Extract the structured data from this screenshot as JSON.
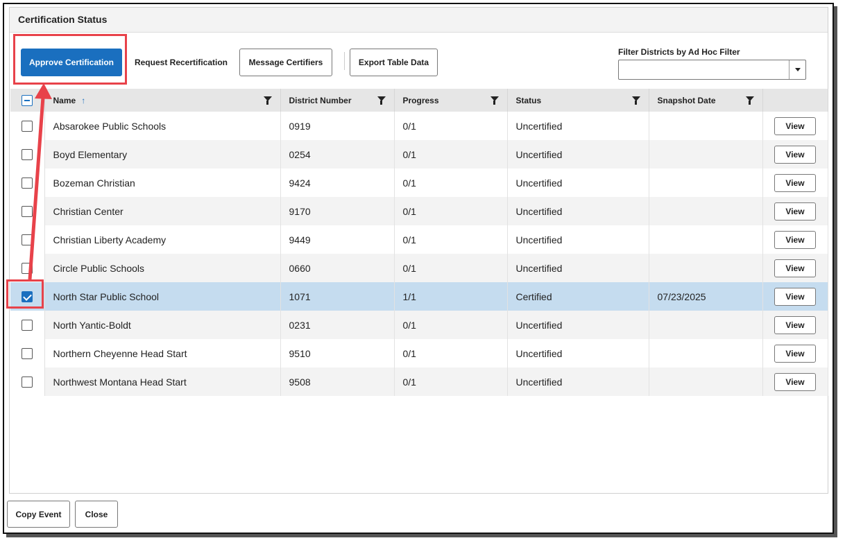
{
  "dialog": {
    "title": "Certification Status"
  },
  "toolbar": {
    "approve_label": "Approve Certification",
    "request_label": "Request Recertification",
    "message_label": "Message Certifiers",
    "export_label": "Export Table Data",
    "filter_label": "Filter Districts by Ad Hoc Filter",
    "filter_value": ""
  },
  "table": {
    "headers": {
      "name": "Name",
      "district_number": "District Number",
      "progress": "Progress",
      "status": "Status",
      "snapshot_date": "Snapshot Date"
    },
    "sort_column": "Name",
    "sort_direction": "ascending",
    "view_label": "View",
    "rows": [
      {
        "name": "Absarokee Public Schools",
        "district_number": "0919",
        "progress": "0/1",
        "status": "Uncertified",
        "snapshot_date": "",
        "checked": false
      },
      {
        "name": "Boyd Elementary",
        "district_number": "0254",
        "progress": "0/1",
        "status": "Uncertified",
        "snapshot_date": "",
        "checked": false
      },
      {
        "name": "Bozeman Christian",
        "district_number": "9424",
        "progress": "0/1",
        "status": "Uncertified",
        "snapshot_date": "",
        "checked": false
      },
      {
        "name": "Christian Center",
        "district_number": "9170",
        "progress": "0/1",
        "status": "Uncertified",
        "snapshot_date": "",
        "checked": false
      },
      {
        "name": "Christian Liberty Academy",
        "district_number": "9449",
        "progress": "0/1",
        "status": "Uncertified",
        "snapshot_date": "",
        "checked": false
      },
      {
        "name": "Circle Public Schools",
        "district_number": "0660",
        "progress": "0/1",
        "status": "Uncertified",
        "snapshot_date": "",
        "checked": false
      },
      {
        "name": "North Star Public School",
        "district_number": "1071",
        "progress": "1/1",
        "status": "Certified",
        "snapshot_date": "07/23/2025",
        "checked": true
      },
      {
        "name": "North Yantic-Boldt",
        "district_number": "0231",
        "progress": "0/1",
        "status": "Uncertified",
        "snapshot_date": "",
        "checked": false
      },
      {
        "name": "Northern Cheyenne Head Start",
        "district_number": "9510",
        "progress": "0/1",
        "status": "Uncertified",
        "snapshot_date": "",
        "checked": false
      },
      {
        "name": "Northwest Montana Head Start",
        "district_number": "9508",
        "progress": "0/1",
        "status": "Uncertified",
        "snapshot_date": "",
        "checked": false
      }
    ]
  },
  "footer": {
    "copy_event_label": "Copy Event",
    "close_label": "Close"
  },
  "colors": {
    "primary": "#1a6fbf",
    "highlight": "#e8424a",
    "selected_row": "#c5dcef"
  }
}
